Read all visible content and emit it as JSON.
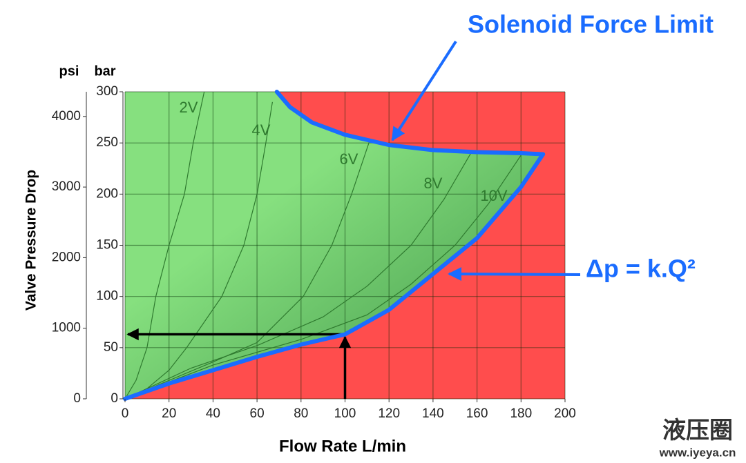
{
  "chart_data": {
    "type": "envelope",
    "annotations": [
      "Solenoid Force Limit",
      "Δp = k.Q²"
    ],
    "x_label": "Flow Rate L/min",
    "y_label": "Valve Pressure Drop",
    "y_unit": "bar",
    "y2_unit": "psi",
    "xlim": [
      0,
      200
    ],
    "xticks": [
      0,
      20,
      40,
      60,
      80,
      100,
      120,
      140,
      160,
      180,
      200
    ],
    "ylim": [
      0,
      300
    ],
    "yticks": [
      0,
      50,
      100,
      150,
      200,
      250,
      300
    ],
    "y2lim": [
      0,
      4350
    ],
    "y2ticks": [
      0,
      1000,
      2000,
      3000,
      4000
    ],
    "grid": true,
    "boundaries": [
      {
        "name": "Solenoid Force Limit",
        "color": "#1a6cff",
        "x": [
          69,
          75,
          85,
          100,
          120,
          140,
          160,
          180,
          190
        ],
        "values": [
          300,
          285,
          270,
          258,
          248,
          243,
          241,
          240,
          239
        ]
      },
      {
        "name": "Δp = k.Q²",
        "color": "#1a6cff",
        "x": [
          0,
          20,
          40,
          60,
          80,
          100,
          120,
          140,
          160,
          180,
          190
        ],
        "values": [
          0,
          15,
          28,
          41,
          53,
          63,
          87,
          122,
          157,
          207,
          239
        ]
      }
    ],
    "series": [
      {
        "name": "2V",
        "color": "#2f7a2f",
        "x": [
          0,
          5,
          10,
          14,
          20,
          27,
          31,
          36
        ],
        "values": [
          0,
          18,
          50,
          100,
          150,
          200,
          250,
          300
        ]
      },
      {
        "name": "4V",
        "color": "#2f7a2f",
        "x": [
          0,
          10,
          20,
          28,
          44,
          54,
          60,
          64,
          67
        ],
        "values": [
          0,
          10,
          28,
          50,
          100,
          150,
          200,
          250,
          290
        ]
      },
      {
        "name": "6V",
        "color": "#2f7a2f",
        "x": [
          0,
          20,
          40,
          60,
          81,
          94,
          103,
          111
        ],
        "values": [
          0,
          18,
          36,
          55,
          100,
          150,
          200,
          251
        ]
      },
      {
        "name": "8V",
        "color": "#2f7a2f",
        "x": [
          0,
          30,
          60,
          90,
          110,
          130,
          145,
          158
        ],
        "values": [
          0,
          30,
          52,
          80,
          110,
          150,
          195,
          243
        ]
      },
      {
        "name": "10V",
        "color": "#2f7a2f",
        "x": [
          0,
          40,
          80,
          110,
          130,
          150,
          165,
          180
        ],
        "values": [
          0,
          33,
          58,
          82,
          112,
          150,
          190,
          238
        ]
      }
    ],
    "readout": {
      "x": 100,
      "y": 63
    },
    "colors": {
      "unsafe": "#ff4d4d",
      "safe_light": "#86e07f",
      "safe_dark": "#3f9447"
    },
    "watermark": [
      "液压圈",
      "www.iyeya.cn"
    ]
  }
}
